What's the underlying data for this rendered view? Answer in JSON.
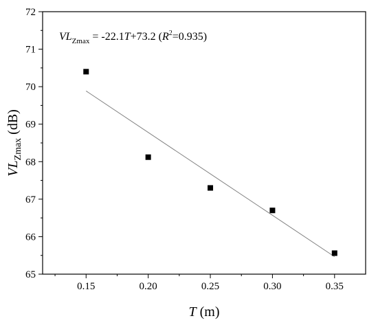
{
  "chart_data": {
    "type": "scatter",
    "xlabel": {
      "italic": "T",
      "rest": " (m)"
    },
    "ylabel": {
      "italic": "VL",
      "sub": "Zmax",
      "rest": " (dB)"
    },
    "xlim": [
      0.115,
      0.375
    ],
    "ylim": [
      65,
      72
    ],
    "x_ticks": [
      0.15,
      0.2,
      0.25,
      0.3,
      0.35
    ],
    "x_tick_labels": [
      "0.15",
      "0.20",
      "0.25",
      "0.30",
      "0.35"
    ],
    "y_ticks": [
      65,
      66,
      67,
      68,
      69,
      70,
      71,
      72
    ],
    "y_tick_labels": [
      "65",
      "66",
      "67",
      "68",
      "69",
      "70",
      "71",
      "72"
    ],
    "grid": false,
    "points": [
      {
        "x": 0.15,
        "y": 70.4
      },
      {
        "x": 0.2,
        "y": 68.12
      },
      {
        "x": 0.25,
        "y": 67.3
      },
      {
        "x": 0.3,
        "y": 66.7
      },
      {
        "x": 0.35,
        "y": 65.56
      }
    ],
    "fit_line": {
      "slope": -22.1,
      "intercept": 73.2,
      "x_range": [
        0.15,
        0.35
      ]
    },
    "annotation": {
      "lhs_italic": "VL",
      "lhs_sub": "Zmax",
      "mid": " = -22.1",
      "var_italic": "T",
      "after_var": "+73.2 (",
      "r_italic": "R",
      "r_sup": "2",
      "after_r": "=0.935)"
    },
    "colors": {
      "marker": "#000000",
      "fit_line": "#808080",
      "axis": "#000000"
    }
  }
}
